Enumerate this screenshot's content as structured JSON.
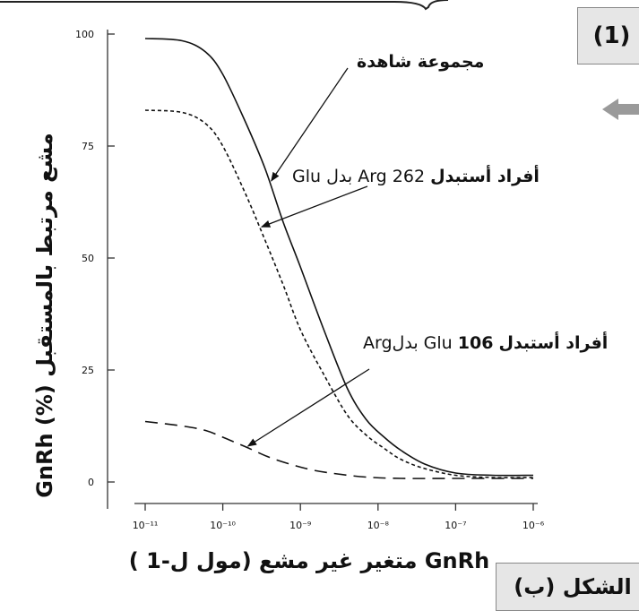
{
  "figure": {
    "number_label": "(1)",
    "caption_label": "الشكل (ب)"
  },
  "chart_data": {
    "type": "line",
    "ylabel": "مشع مرتبط بالمستقبل (%) GnRh",
    "xlabel": "GnRh متغير غير مشع (مول ل-1 )",
    "x_scale": "log",
    "xlim": [
      1e-11,
      1e-06
    ],
    "ylim": [
      0,
      100
    ],
    "x_tick_labels": [
      "10⁻¹¹",
      "10⁻¹⁰",
      "10⁻⁹",
      "10⁻⁸",
      "10⁻⁷",
      "10⁻⁶"
    ],
    "x_tick_values": [
      1e-11,
      1e-10,
      1e-09,
      1e-08,
      1e-07,
      1e-06
    ],
    "y_tick_labels": [
      "0",
      "25",
      "50",
      "75",
      "100"
    ],
    "y_tick_values": [
      0,
      25,
      50,
      75,
      100
    ],
    "grid": false,
    "series": [
      {
        "name": "مجموعة شاهدة",
        "style": "solid",
        "x": [
          1e-11,
          3e-11,
          6e-11,
          1e-10,
          2e-10,
          3.5e-10,
          6e-10,
          1e-09,
          2e-09,
          4e-09,
          7e-09,
          1.2e-08,
          2e-08,
          4e-08,
          1e-07,
          3e-07,
          1e-06
        ],
        "values": [
          99,
          98.5,
          96,
          91,
          80,
          70,
          58,
          48,
          34,
          21,
          14,
          10,
          7,
          4,
          2,
          1.5,
          1.5
        ]
      },
      {
        "name": "أفراد أستبدل Arg 262 بدل Glu",
        "style": "short-dash",
        "x": [
          1e-11,
          3e-11,
          6e-11,
          1e-10,
          2e-10,
          3.5e-10,
          6e-10,
          1e-09,
          2e-09,
          4e-09,
          7e-09,
          1.2e-08,
          2e-08,
          4e-08,
          1e-07,
          3e-07,
          1e-06
        ],
        "values": [
          83,
          82.5,
          80,
          75,
          64,
          54,
          44,
          34,
          24,
          15,
          10.5,
          7.5,
          5,
          3,
          1.5,
          1,
          1
        ]
      },
      {
        "name": "أفراد أستبدل Glu 106 بدلArg",
        "style": "long-dash",
        "x": [
          1e-11,
          3e-11,
          6e-11,
          1e-10,
          2e-10,
          4e-10,
          8e-10,
          1.5e-09,
          3e-09,
          7e-09,
          2e-08,
          1e-07,
          1e-06
        ],
        "values": [
          13.5,
          12.5,
          11.5,
          10,
          7.8,
          5.5,
          3.8,
          2.6,
          1.8,
          1.1,
          0.8,
          0.8,
          0.8
        ]
      }
    ],
    "annotations": [
      {
        "parts": [
          "مجموعة شاهدة"
        ],
        "target_series": 0
      },
      {
        "parts": [
          "أفراد أستبدل",
          " Arg 262 ",
          "بدل Glu"
        ],
        "target_series": 1
      },
      {
        "parts": [
          "أفراد أستبدل",
          " Glu ",
          "106",
          " بدلArg"
        ],
        "target_series": 2
      }
    ]
  }
}
